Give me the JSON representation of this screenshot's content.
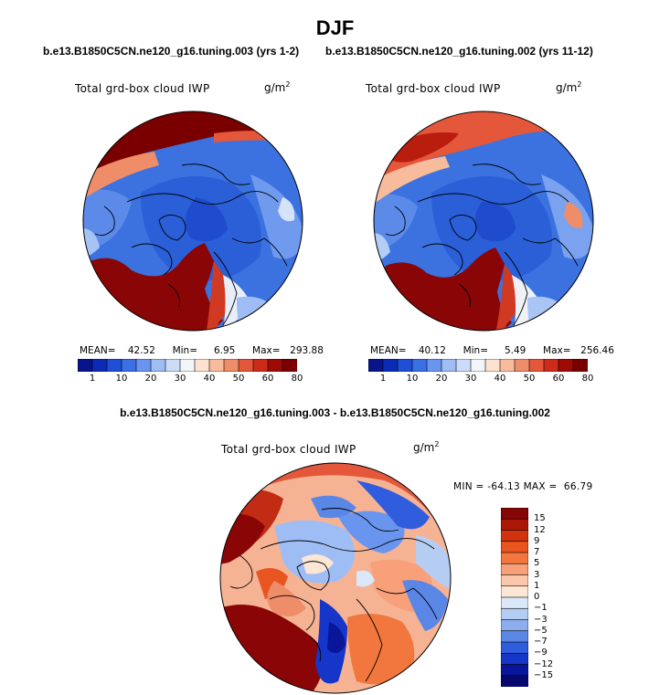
{
  "season": "DJF",
  "panels": {
    "left": {
      "case": "b.e13.B1850C5CN.ne120_g16.tuning.003 (yrs 1-2)",
      "variable": "Total grd-box cloud IWP",
      "units_base": "g/m",
      "units_exp": "2",
      "mean_label": "MEAN=",
      "mean": "42.52",
      "min_label": "Min=",
      "min": "6.95",
      "max_label": "Max=",
      "max": "293.88"
    },
    "right": {
      "case": "b.e13.B1850C5CN.ne120_g16.tuning.002 (yrs 11-12)",
      "variable": "Total grd-box cloud IWP",
      "units_base": "g/m",
      "units_exp": "2",
      "mean_label": "MEAN=",
      "mean": "40.12",
      "min_label": "Min=",
      "min": "5.49",
      "max_label": "Max=",
      "max": "256.46"
    },
    "diff": {
      "case": "b.e13.B1850C5CN.ne120_g16.tuning.003 - b.e13.B1850C5CN.ne120_g16.tuning.002",
      "variable": "Total grd-box cloud IWP",
      "units_base": "g/m",
      "units_exp": "2",
      "minmax": "MIN = -64.13 MAX =  66.79"
    }
  },
  "chart_data": [
    {
      "type": "heatmap",
      "projection": "north-polar-stereographic",
      "title": "b.e13.B1850C5CN.ne120_g16.tuning.003 (yrs 1-2)",
      "variable": "Total grd-box cloud IWP",
      "units": "g/m^2",
      "stats": {
        "mean": 42.52,
        "min": 6.95,
        "max": 293.88
      },
      "colorbar": {
        "levels": [
          1,
          10,
          20,
          30,
          40,
          50,
          60,
          80
        ],
        "tick_labels": [
          "1",
          "10",
          "20",
          "30",
          "40",
          "50",
          "60",
          "80"
        ],
        "colors": [
          "#08148a",
          "#0b2bb7",
          "#1e4fd6",
          "#3a6fe6",
          "#6a95ee",
          "#9ebdf5",
          "#cadcf7",
          "#f2f5f9",
          "#fde3cf",
          "#f8bc9d",
          "#ef8d68",
          "#e4573a",
          "#cd2b19",
          "#9e0b05",
          "#7a0000"
        ]
      }
    },
    {
      "type": "heatmap",
      "projection": "north-polar-stereographic",
      "title": "b.e13.B1850C5CN.ne120_g16.tuning.002 (yrs 11-12)",
      "variable": "Total grd-box cloud IWP",
      "units": "g/m^2",
      "stats": {
        "mean": 40.12,
        "min": 5.49,
        "max": 256.46
      },
      "colorbar": {
        "levels": [
          1,
          10,
          20,
          30,
          40,
          50,
          60,
          80
        ],
        "tick_labels": [
          "1",
          "10",
          "20",
          "30",
          "40",
          "50",
          "60",
          "80"
        ],
        "colors": [
          "#08148a",
          "#0b2bb7",
          "#1e4fd6",
          "#3a6fe6",
          "#6a95ee",
          "#9ebdf5",
          "#cadcf7",
          "#f2f5f9",
          "#fde3cf",
          "#f8bc9d",
          "#ef8d68",
          "#e4573a",
          "#cd2b19",
          "#9e0b05",
          "#7a0000"
        ]
      }
    },
    {
      "type": "heatmap",
      "projection": "north-polar-stereographic",
      "title": "b.e13.B1850C5CN.ne120_g16.tuning.003 - b.e13.B1850C5CN.ne120_g16.tuning.002",
      "variable": "Total grd-box cloud IWP",
      "units": "g/m^2",
      "stats": {
        "min": -64.13,
        "max": 66.79
      },
      "colorbar": {
        "levels": [
          15,
          12,
          9,
          7,
          5,
          3,
          1,
          0,
          -1,
          -3,
          -5,
          -7,
          -9,
          -12,
          -15
        ],
        "tick_labels": [
          "15",
          "12",
          "9",
          "7",
          "5",
          "3",
          "1",
          "0",
          "−1",
          "−3",
          "−5",
          "−7",
          "−9",
          "−12",
          "−15"
        ],
        "colors": [
          "#860505",
          "#ab1808",
          "#d13310",
          "#e85521",
          "#f2773f",
          "#f8a07a",
          "#fbc7aa",
          "#fde7d4",
          "#dbe8f9",
          "#b6cdf3",
          "#8caeef",
          "#5a86e6",
          "#2f5ddd",
          "#1536c8",
          "#0a169a",
          "#06086e"
        ]
      }
    }
  ]
}
